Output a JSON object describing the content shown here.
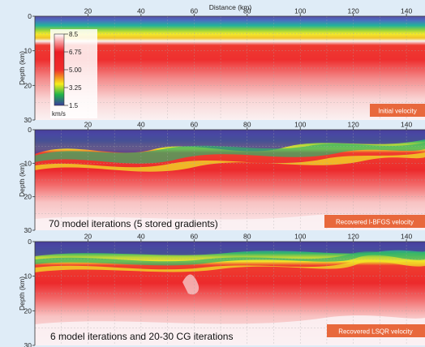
{
  "figure": {
    "axis_title_top": "Distance (km)",
    "x_ticks": [
      "20",
      "40",
      "60",
      "80",
      "100",
      "120",
      "140"
    ],
    "x_tick_values": [
      20,
      40,
      60,
      80,
      100,
      120,
      140
    ],
    "x_range_km": [
      0,
      147
    ],
    "depth_range_km": [
      0,
      30
    ],
    "ylabel": "Depth (km)",
    "y_ticks": [
      "0",
      "10",
      "20",
      "30"
    ],
    "y_tick_values": [
      0,
      10,
      20,
      30
    ],
    "colorbar": {
      "ticks": [
        "8.5",
        "6.75",
        "5.00",
        "3.25",
        "1.5"
      ],
      "unit": "km/s",
      "colors_top_to_bottom": [
        "#ffffff",
        "#ec1c24",
        "#f7ed1c",
        "#1db34b",
        "#3c3c9e"
      ]
    },
    "panels": [
      {
        "label": "Initial velocity",
        "caption": "",
        "label_bg": "#e8683c"
      },
      {
        "label": "Recovered l-BFGS velocity",
        "caption": "70 model iterations (5 stored gradients)",
        "label_bg": "#e8683c"
      },
      {
        "label": "Recovered LSQR velocity",
        "caption": "6 model iterations and 20-30 CG iterations",
        "label_bg": "#e8683c"
      }
    ]
  }
}
